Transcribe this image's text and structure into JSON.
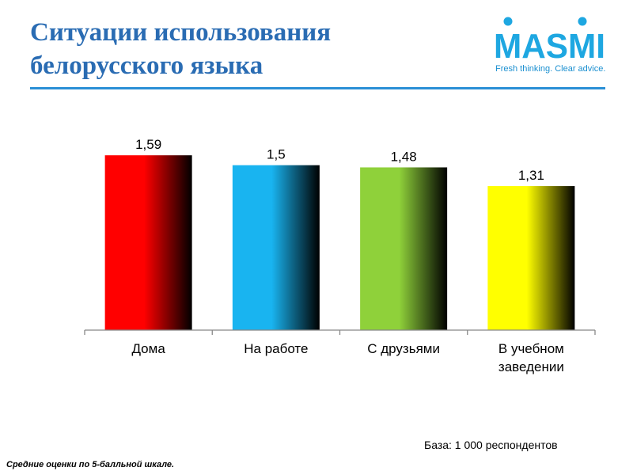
{
  "title": [
    "Ситуации использования",
    "белорусского языка"
  ],
  "logo": {
    "word": "MASMI",
    "tagline": "Fresh thinking. Clear advice."
  },
  "chart_data": {
    "type": "bar",
    "categories": [
      [
        "Дома"
      ],
      [
        "На работе"
      ],
      [
        "С друзьями"
      ],
      [
        "В учебном",
        "заведении"
      ]
    ],
    "values": [
      1.59,
      1.5,
      1.48,
      1.31
    ],
    "value_labels": [
      "1,59",
      "1,5",
      "1,48",
      "1,31"
    ],
    "colors": [
      "#ff0000",
      "#19b4f0",
      "#8fd13a",
      "#ffff00"
    ],
    "title": "",
    "xlabel": "",
    "ylabel": "",
    "ylim": [
      0,
      1.8
    ],
    "grid": false
  },
  "base_text": "База: 1 000 респондентов",
  "footnote": "Средние оценки по 5-балльной шкале."
}
